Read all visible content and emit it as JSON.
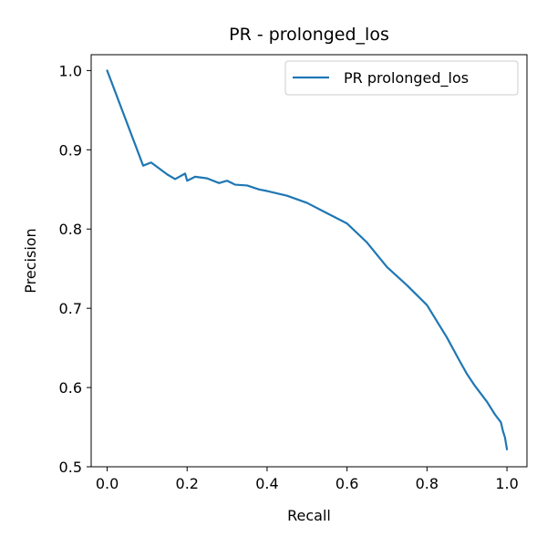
{
  "chart_data": {
    "type": "line",
    "title": "PR - prolonged_los",
    "xlabel": "Recall",
    "ylabel": "Precision",
    "xlim": [
      -0.04,
      1.05
    ],
    "ylim": [
      0.5,
      1.02
    ],
    "xticks": [
      "0.0",
      "0.2",
      "0.4",
      "0.6",
      "0.8",
      "1.0"
    ],
    "yticks": [
      "0.5",
      "0.6",
      "0.7",
      "0.8",
      "0.9",
      "1.0"
    ],
    "grid": false,
    "legend": "top-right",
    "color": "#1f77b4",
    "series": [
      {
        "name": "PR prolonged_los",
        "x": [
          0.0,
          0.09,
          0.11,
          0.15,
          0.17,
          0.195,
          0.2,
          0.22,
          0.25,
          0.28,
          0.3,
          0.32,
          0.35,
          0.38,
          0.4,
          0.45,
          0.5,
          0.55,
          0.6,
          0.65,
          0.7,
          0.75,
          0.8,
          0.85,
          0.88,
          0.9,
          0.92,
          0.95,
          0.97,
          0.985,
          0.99,
          0.995,
          1.0
        ],
        "y": [
          1.0,
          0.88,
          0.884,
          0.869,
          0.863,
          0.87,
          0.861,
          0.866,
          0.864,
          0.858,
          0.861,
          0.856,
          0.855,
          0.85,
          0.848,
          0.842,
          0.833,
          0.82,
          0.807,
          0.783,
          0.752,
          0.729,
          0.704,
          0.663,
          0.635,
          0.617,
          0.602,
          0.582,
          0.566,
          0.556,
          0.545,
          0.537,
          0.522
        ]
      }
    ]
  }
}
